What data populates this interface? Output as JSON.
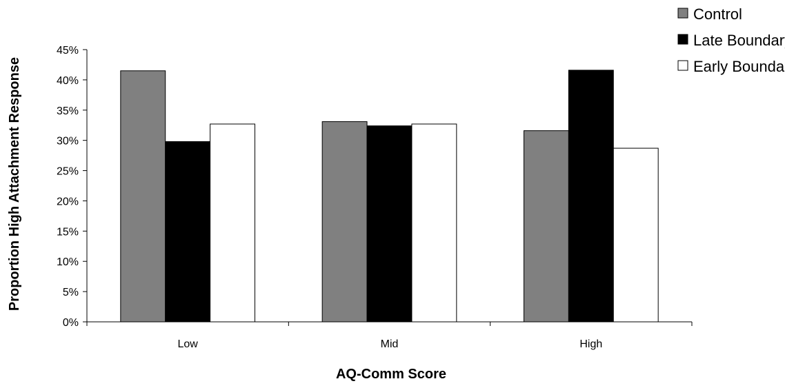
{
  "chart_data": {
    "type": "bar",
    "title": "",
    "xlabel": "AQ-Comm Score",
    "ylabel": "Proportion High Attachment Response",
    "categories": [
      "Low",
      "Mid",
      "High"
    ],
    "series": [
      {
        "name": "Control",
        "values": [
          41.5,
          33.1,
          31.6
        ],
        "color": "#808080"
      },
      {
        "name": "Late Boundary",
        "values": [
          29.8,
          32.4,
          41.6
        ],
        "color": "#000000"
      },
      {
        "name": "Early Boundary",
        "values": [
          32.7,
          32.7,
          28.7
        ],
        "color": "#ffffff"
      }
    ],
    "ylim": [
      0,
      45
    ],
    "ytick_step": 5,
    "ytick_format": "percent",
    "grid": false,
    "legend_position": "top-right"
  }
}
